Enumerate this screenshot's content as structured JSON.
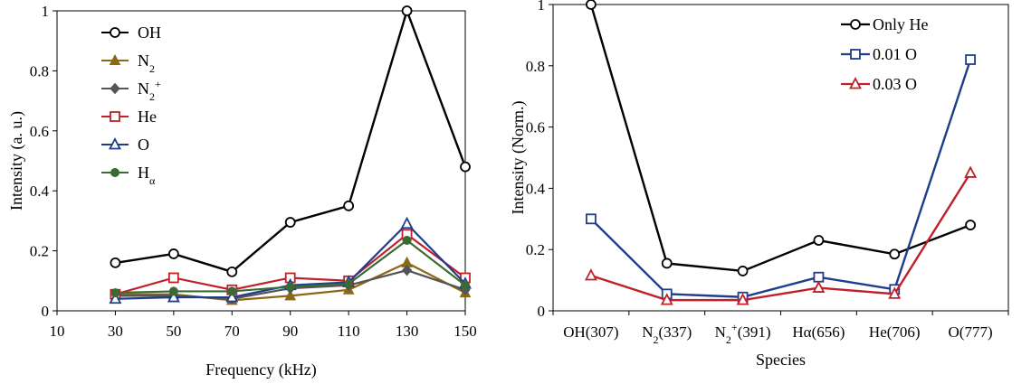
{
  "chart_data": [
    {
      "type": "line",
      "xlabel": "Frequency (kHz)",
      "ylabel": "Intensity (a. u.)",
      "xlim": [
        10,
        150
      ],
      "ylim": [
        0,
        1
      ],
      "xticks": [
        "10",
        "30",
        "50",
        "70",
        "90",
        "110",
        "130",
        "150"
      ],
      "yticks": [
        "0",
        "0.2",
        "0.4",
        "0.6",
        "0.8",
        "1"
      ],
      "x": [
        30,
        50,
        70,
        90,
        110,
        130,
        150
      ],
      "legend_position": "top-left",
      "series": [
        {
          "name": "OH",
          "main": "OH",
          "sub": "",
          "sup": "",
          "color": "#000000",
          "marker": "circle-open",
          "values": [
            0.16,
            0.19,
            0.13,
            0.295,
            0.35,
            1.0,
            0.48
          ]
        },
        {
          "name": "N2",
          "main": "N",
          "sub": "2",
          "sup": "",
          "color": "#8B6914",
          "marker": "triangle-filled",
          "values": [
            0.055,
            0.055,
            0.035,
            0.05,
            0.07,
            0.16,
            0.06
          ]
        },
        {
          "name": "N2+",
          "main": "N",
          "sub": "2",
          "sup": "+",
          "color": "#555555",
          "marker": "diamond-filled",
          "values": [
            0.05,
            0.05,
            0.04,
            0.075,
            0.085,
            0.135,
            0.07
          ]
        },
        {
          "name": "He",
          "main": "He",
          "sub": "",
          "sup": "",
          "color": "#C0202A",
          "marker": "square-open",
          "values": [
            0.055,
            0.11,
            0.07,
            0.11,
            0.1,
            0.255,
            0.11
          ]
        },
        {
          "name": "O",
          "main": "O",
          "sub": "",
          "sup": "",
          "color": "#1F3D8C",
          "marker": "triangle-open",
          "values": [
            0.04,
            0.045,
            0.045,
            0.085,
            0.095,
            0.29,
            0.09
          ]
        },
        {
          "name": "Hα",
          "main": "H",
          "sub": "α",
          "sup": "",
          "color": "#3A6B35",
          "marker": "circle-filled",
          "values": [
            0.06,
            0.065,
            0.065,
            0.08,
            0.09,
            0.235,
            0.085
          ]
        }
      ]
    },
    {
      "type": "line",
      "xlabel": "Species",
      "ylabel": "Intensity (Norm.)",
      "ylim": [
        0,
        1
      ],
      "yticks": [
        "0",
        "0.2",
        "0.4",
        "0.6",
        "0.8",
        "1"
      ],
      "categories": [
        "OH(307)",
        "N2(337)",
        "N2+(391)",
        "Hα(656)",
        "He(706)",
        "O(777)"
      ],
      "category_labels": [
        {
          "main": "OH(307)",
          "sub": "",
          "sup": "",
          "rest": ""
        },
        {
          "main": "N",
          "sub": "2",
          "sup": "",
          "rest": "(337)"
        },
        {
          "main": "N",
          "sub": "2",
          "sup": "+",
          "rest": "(391)"
        },
        {
          "main": "Hα(656)",
          "sub": "",
          "sup": "",
          "rest": ""
        },
        {
          "main": "He(706)",
          "sub": "",
          "sup": "",
          "rest": ""
        },
        {
          "main": "O(777)",
          "sub": "",
          "sup": "",
          "rest": ""
        }
      ],
      "legend_position": "top-right",
      "series": [
        {
          "name": "Only He",
          "color": "#000000",
          "marker": "circle-open",
          "values": [
            1.0,
            0.155,
            0.13,
            0.23,
            0.185,
            0.28
          ]
        },
        {
          "name": "0.01 O",
          "color": "#1F3D8C",
          "marker": "square-open",
          "values": [
            0.3,
            0.055,
            0.045,
            0.11,
            0.07,
            0.82
          ]
        },
        {
          "name": "0.03 O",
          "color": "#C0202A",
          "marker": "triangle-open",
          "values": [
            0.115,
            0.035,
            0.035,
            0.075,
            0.055,
            0.45
          ]
        }
      ]
    }
  ]
}
